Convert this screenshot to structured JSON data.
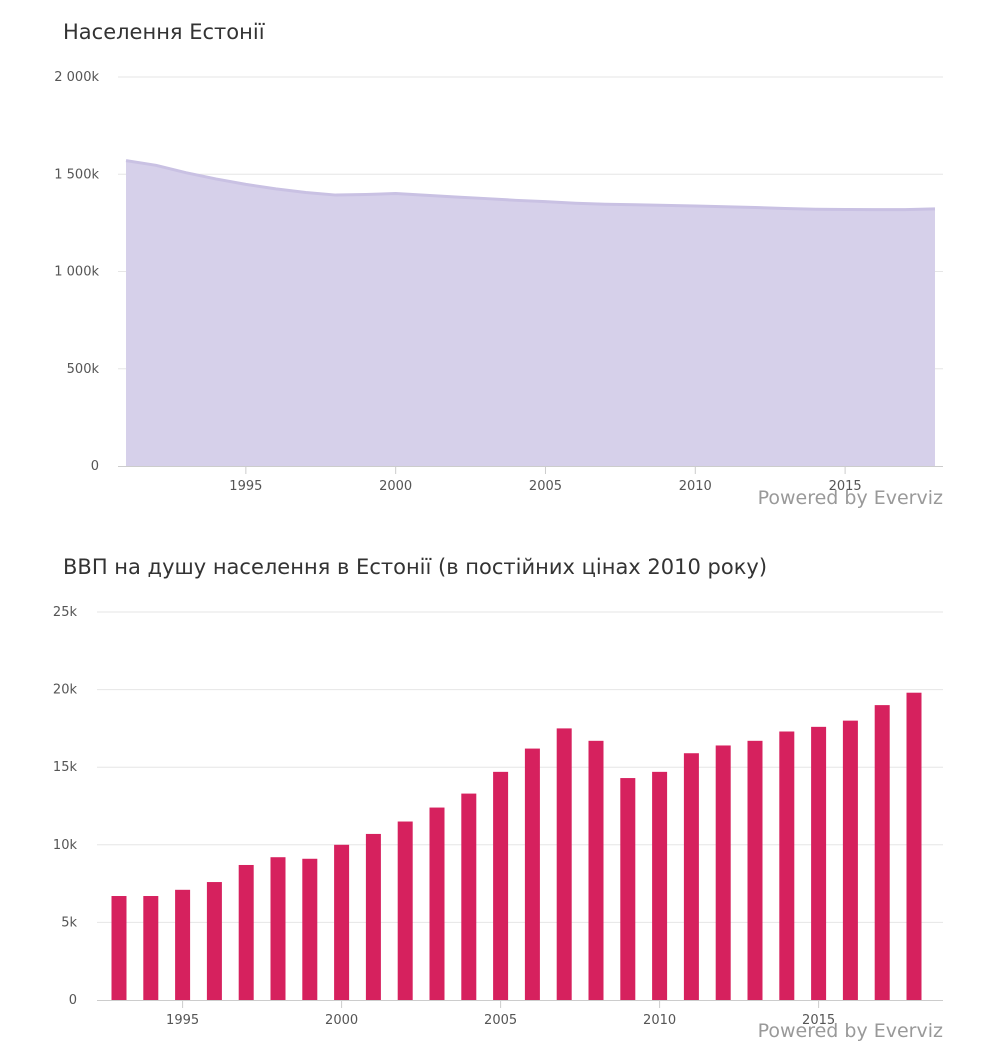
{
  "chart_data": [
    {
      "type": "area",
      "title": "Населення Естонії",
      "credits": "Powered by Everviz",
      "colors": {
        "fill": "#d6d0ea",
        "line": "#c9c1e3"
      },
      "x": [
        1991,
        1992,
        1993,
        1994,
        1995,
        1996,
        1997,
        1998,
        1999,
        2000,
        2001,
        2002,
        2003,
        2004,
        2005,
        2006,
        2007,
        2008,
        2009,
        2010,
        2011,
        2012,
        2013,
        2014,
        2015,
        2016,
        2017,
        2018
      ],
      "values": [
        1570000,
        1546000,
        1508000,
        1476000,
        1448000,
        1425000,
        1406000,
        1393000,
        1396000,
        1401000,
        1392000,
        1383000,
        1375000,
        1366000,
        1359000,
        1351000,
        1346000,
        1343000,
        1340000,
        1337000,
        1333000,
        1329000,
        1324000,
        1320000,
        1319000,
        1318000,
        1318000,
        1322000
      ],
      "xlim": [
        1991,
        2018
      ],
      "ylim": [
        0,
        2000000
      ],
      "yticks": [
        0,
        500000,
        1000000,
        1500000,
        2000000
      ],
      "ytick_labels": [
        "0",
        "500k",
        "1 000k",
        "1 500k",
        "2 000k"
      ],
      "xticks": [
        1995,
        2000,
        2005,
        2010,
        2015
      ],
      "xtick_labels": [
        "1995",
        "2000",
        "2005",
        "2010",
        "2015"
      ],
      "grid": true,
      "legend": "none"
    },
    {
      "type": "bar",
      "title": "ВВП на душу населення в Естонії (в постійних цінах 2010 року)",
      "credits": "Powered by Everviz",
      "colors": {
        "bar": "#d6215e"
      },
      "categories": [
        1993,
        1994,
        1995,
        1996,
        1997,
        1998,
        1999,
        2000,
        2001,
        2002,
        2003,
        2004,
        2005,
        2006,
        2007,
        2008,
        2009,
        2010,
        2011,
        2012,
        2013,
        2014,
        2015,
        2016,
        2017,
        2018
      ],
      "values": [
        6700,
        6700,
        7100,
        7600,
        8700,
        9200,
        9100,
        10000,
        10700,
        11500,
        12400,
        13300,
        14700,
        16200,
        17500,
        16700,
        14300,
        14700,
        15900,
        16400,
        16700,
        17300,
        17600,
        18000,
        19000,
        19800
      ],
      "ylim": [
        0,
        25000
      ],
      "yticks": [
        0,
        5000,
        10000,
        15000,
        20000,
        25000
      ],
      "ytick_labels": [
        "0",
        "5k",
        "10k",
        "15k",
        "20k",
        "25k"
      ],
      "xticks": [
        1995,
        2000,
        2005,
        2010,
        2015
      ],
      "xtick_labels": [
        "1995",
        "2000",
        "2005",
        "2010",
        "2015"
      ],
      "grid": true,
      "legend": "none"
    }
  ]
}
